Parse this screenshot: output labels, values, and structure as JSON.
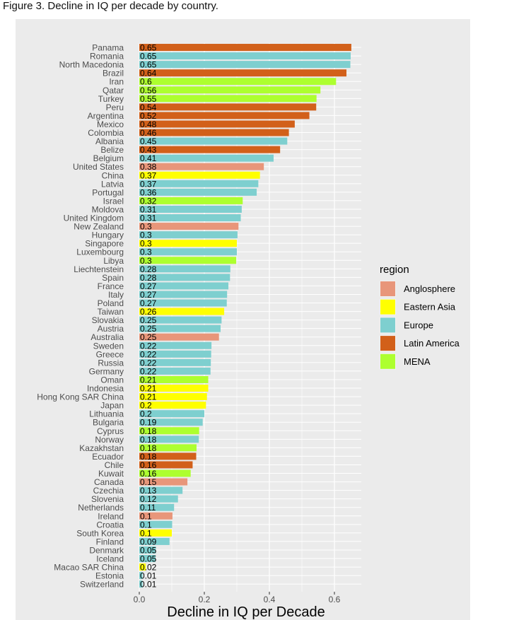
{
  "caption": "Figure 3. Decline in IQ per decade by country.",
  "colors": {
    "Anglosphere": "#E8967A",
    "Eastern Asia": "#FFFF00",
    "Europe": "#7ECFCF",
    "Latin America": "#D2601A",
    "MENA": "#ADFF2F",
    "panel": "#EBEBEB",
    "grid": "#FFFFFF"
  },
  "chart_data": {
    "type": "bar",
    "orientation": "horizontal",
    "title": "",
    "xlabel": "Decline in IQ per Decade",
    "ylabel": "",
    "xlim": [
      0,
      0.7
    ],
    "xticks": [
      "0.0",
      "0.2",
      "0.4",
      "0.6"
    ],
    "legend": {
      "title": "region",
      "placement": "right",
      "entries": [
        "Anglosphere",
        "Eastern Asia",
        "Europe",
        "Latin America",
        "MENA"
      ]
    },
    "categories": [
      "Panama",
      "Romania",
      "North Macedonia",
      "Brazil",
      "Iran",
      "Qatar",
      "Turkey",
      "Peru",
      "Argentina",
      "Mexico",
      "Colombia",
      "Albania",
      "Belize",
      "Belgium",
      "United States",
      "China",
      "Latvia",
      "Portugal",
      "Israel",
      "Moldova",
      "United Kingdom",
      "New Zealand",
      "Hungary",
      "Singapore",
      "Luxembourg",
      "Libya",
      "Liechtenstein",
      "Spain",
      "France",
      "Italy",
      "Poland",
      "Taiwan",
      "Slovakia",
      "Austria",
      "Australia",
      "Sweden",
      "Greece",
      "Russia",
      "Germany",
      "Oman",
      "Indonesia",
      "Hong Kong SAR China",
      "Japan",
      "Lithuania",
      "Bulgaria",
      "Cyprus",
      "Norway",
      "Kazakhstan",
      "Ecuador",
      "Chile",
      "Kuwait",
      "Canada",
      "Czechia",
      "Slovenia",
      "Netherlands",
      "Ireland",
      "Croatia",
      "South Korea",
      "Finland",
      "Denmark",
      "Iceland",
      "Macao SAR China",
      "Estonia",
      "Switzerland"
    ],
    "values": [
      0.652,
      0.65,
      0.649,
      0.637,
      0.605,
      0.557,
      0.545,
      0.544,
      0.523,
      0.478,
      0.46,
      0.455,
      0.433,
      0.413,
      0.383,
      0.371,
      0.366,
      0.361,
      0.318,
      0.315,
      0.312,
      0.305,
      0.302,
      0.3,
      0.3,
      0.298,
      0.28,
      0.279,
      0.274,
      0.27,
      0.269,
      0.261,
      0.253,
      0.25,
      0.245,
      0.222,
      0.221,
      0.22,
      0.219,
      0.212,
      0.212,
      0.208,
      0.205,
      0.2,
      0.195,
      0.184,
      0.183,
      0.176,
      0.175,
      0.164,
      0.158,
      0.148,
      0.133,
      0.119,
      0.107,
      0.102,
      0.101,
      0.1,
      0.093,
      0.051,
      0.05,
      0.02,
      0.01,
      0.01
    ],
    "value_labels": [
      "0.65",
      "0.65",
      "0.65",
      "0.64",
      "0.6",
      "0.56",
      "0.55",
      "0.54",
      "0.52",
      "0.48",
      "0.46",
      "0.45",
      "0.43",
      "0.41",
      "0.38",
      "0.37",
      "0.37",
      "0.36",
      "0.32",
      "0.31",
      "0.31",
      "0.3",
      "0.3",
      "0.3",
      "0.3",
      "0.3",
      "0.28",
      "0.28",
      "0.27",
      "0.27",
      "0.27",
      "0.26",
      "0.25",
      "0.25",
      "0.25",
      "0.22",
      "0.22",
      "0.22",
      "0.22",
      "0.21",
      "0.21",
      "0.21",
      "0.2",
      "0.2",
      "0.19",
      "0.18",
      "0.18",
      "0.18",
      "0.18",
      "0.16",
      "0.16",
      "0.15",
      "0.13",
      "0.12",
      "0.11",
      "0.1",
      "0.1",
      "0.1",
      "0.09",
      "0.05",
      "0.05",
      "0.02",
      "0.01",
      "0.01"
    ],
    "regions": [
      "Latin America",
      "Europe",
      "Europe",
      "Latin America",
      "MENA",
      "MENA",
      "MENA",
      "Latin America",
      "Latin America",
      "Latin America",
      "Latin America",
      "Europe",
      "Latin America",
      "Europe",
      "Anglosphere",
      "Eastern Asia",
      "Europe",
      "Europe",
      "MENA",
      "Europe",
      "Europe",
      "Anglosphere",
      "Europe",
      "Eastern Asia",
      "Europe",
      "MENA",
      "Europe",
      "Europe",
      "Europe",
      "Europe",
      "Europe",
      "Eastern Asia",
      "Europe",
      "Europe",
      "Anglosphere",
      "Europe",
      "Europe",
      "Europe",
      "Europe",
      "MENA",
      "Eastern Asia",
      "Eastern Asia",
      "Eastern Asia",
      "Europe",
      "Europe",
      "MENA",
      "Europe",
      "MENA",
      "Latin America",
      "Latin America",
      "MENA",
      "Anglosphere",
      "Europe",
      "Europe",
      "Europe",
      "Anglosphere",
      "Europe",
      "Eastern Asia",
      "Europe",
      "Europe",
      "Europe",
      "Eastern Asia",
      "Europe",
      "Europe"
    ]
  }
}
